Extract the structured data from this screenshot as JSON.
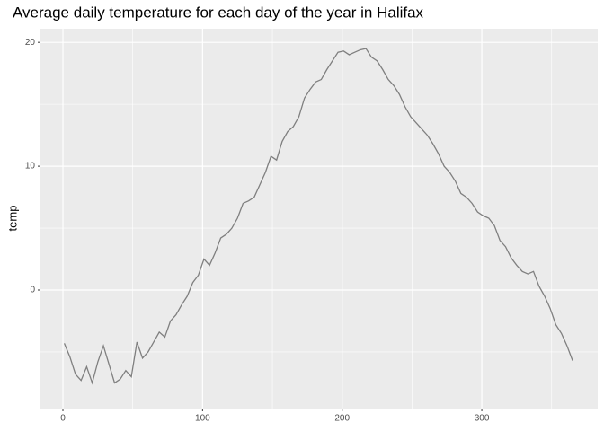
{
  "chart_data": {
    "type": "line",
    "title": "Average daily temperature for each day of the year in Halifax",
    "ylabel": "temp",
    "x": [
      1,
      5,
      9,
      13,
      17,
      21,
      25,
      29,
      33,
      37,
      41,
      45,
      49,
      53,
      57,
      61,
      65,
      69,
      73,
      77,
      81,
      85,
      89,
      93,
      97,
      101,
      105,
      109,
      113,
      117,
      121,
      125,
      129,
      133,
      137,
      141,
      145,
      149,
      153,
      157,
      161,
      165,
      169,
      173,
      177,
      181,
      185,
      189,
      193,
      197,
      201,
      205,
      209,
      213,
      217,
      221,
      225,
      229,
      233,
      237,
      241,
      245,
      249,
      253,
      257,
      261,
      265,
      269,
      273,
      277,
      281,
      285,
      289,
      293,
      297,
      301,
      305,
      309,
      313,
      317,
      321,
      325,
      329,
      333,
      337,
      341,
      345,
      349,
      353,
      357,
      361,
      365
    ],
    "series": [
      {
        "name": "temp",
        "color": "#7f7f7f",
        "values": [
          -4.3,
          -5.4,
          -6.8,
          -7.3,
          -6.2,
          -7.5,
          -5.8,
          -4.5,
          -6.0,
          -7.5,
          -7.2,
          -6.5,
          -7.0,
          -4.2,
          -5.5,
          -5.0,
          -4.2,
          -3.4,
          -3.8,
          -2.5,
          -2.0,
          -1.2,
          -0.5,
          0.6,
          1.2,
          2.5,
          2.0,
          3.0,
          4.2,
          4.5,
          5.0,
          5.8,
          7.0,
          7.2,
          7.5,
          8.5,
          9.5,
          10.8,
          10.5,
          12.0,
          12.8,
          13.2,
          14.0,
          15.5,
          16.2,
          16.8,
          17.0,
          17.8,
          18.5,
          19.2,
          19.3,
          19.0,
          19.2,
          19.4,
          19.5,
          18.8,
          18.5,
          17.8,
          17.0,
          16.5,
          15.8,
          14.8,
          14.0,
          13.5,
          13.0,
          12.5,
          11.8,
          11.0,
          10.0,
          9.5,
          8.8,
          7.8,
          7.5,
          7.0,
          6.3,
          6.0,
          5.8,
          5.2,
          4.0,
          3.5,
          2.6,
          2.0,
          1.5,
          1.3,
          1.5,
          0.3,
          -0.5,
          -1.5,
          -2.8,
          -3.5,
          -4.5,
          -5.7
        ]
      }
    ],
    "xlim": [
      -16.1,
      383
    ],
    "ylim": [
      -9.57,
      21.1
    ],
    "xticks": [
      0,
      100,
      200,
      300
    ],
    "yticks": [
      0,
      10,
      20
    ],
    "xminorticks": [
      50,
      150,
      250,
      350
    ],
    "yminorticks": [
      -5,
      5,
      15
    ],
    "grid": true
  }
}
